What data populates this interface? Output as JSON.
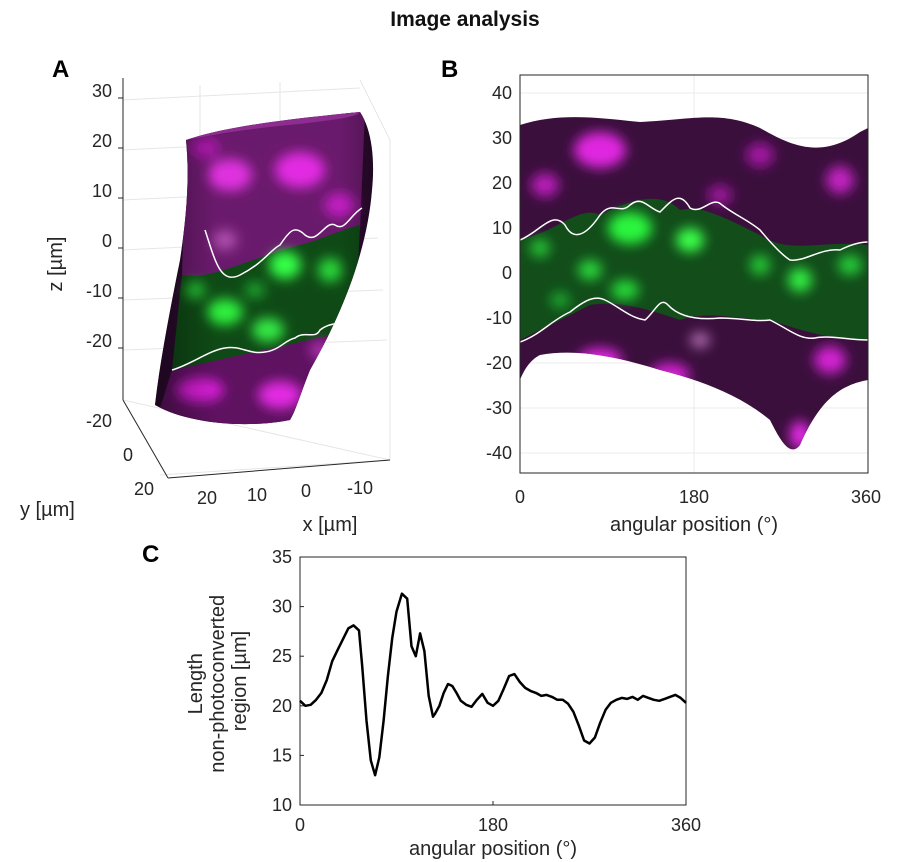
{
  "title": "Image analysis",
  "panels": {
    "a": {
      "label": "A",
      "zlabel": "z [µm]",
      "ylabel": "y [µm]",
      "xlabel": "x [µm]",
      "zticks": [
        "30",
        "20",
        "10",
        "0",
        "-10",
        "-20"
      ],
      "yticks": [
        "-20",
        "0",
        "20"
      ],
      "xticks": [
        "20",
        "10",
        "0",
        "-10"
      ]
    },
    "b": {
      "label": "B",
      "yticks": [
        "40",
        "30",
        "20",
        "10",
        "0",
        "-10",
        "-20",
        "-30",
        "-40"
      ],
      "xticks": [
        "0",
        "180",
        "360"
      ],
      "xlabel": "angular position (°)"
    },
    "c": {
      "label": "C"
    }
  },
  "colors": {
    "unconverted": "#22dd33",
    "photoconverted": "#d21fd2",
    "trace": "#000000",
    "boundary": "#ffffff"
  },
  "chart_data": {
    "type": "line",
    "title": "",
    "xlabel": "angular position (°)",
    "ylabel_lines": [
      "Length",
      "non-photoconverted",
      "region [µm]"
    ],
    "xlim": [
      0,
      360
    ],
    "ylim": [
      10,
      35
    ],
    "xticks": [
      0,
      180,
      360
    ],
    "yticks": [
      10,
      15,
      20,
      25,
      30,
      35
    ],
    "series": [
      {
        "name": "length",
        "x": [
          0,
          5,
          10,
          15,
          20,
          25,
          30,
          35,
          40,
          45,
          50,
          55,
          58,
          62,
          66,
          70,
          74,
          78,
          82,
          86,
          90,
          95,
          100,
          104,
          108,
          112,
          116,
          120,
          124,
          126,
          130,
          134,
          138,
          142,
          146,
          150,
          155,
          160,
          165,
          170,
          175,
          180,
          185,
          190,
          195,
          200,
          205,
          210,
          215,
          220,
          225,
          230,
          235,
          240,
          245,
          250,
          255,
          260,
          265,
          270,
          275,
          280,
          285,
          290,
          295,
          300,
          305,
          310,
          315,
          320,
          325,
          330,
          335,
          340,
          345,
          350,
          355,
          360
        ],
        "y": [
          20.5,
          20.0,
          20.1,
          20.6,
          21.3,
          22.6,
          24.5,
          25.6,
          26.7,
          27.8,
          28.1,
          27.6,
          24.0,
          18.5,
          14.5,
          13.0,
          14.8,
          18.5,
          23.0,
          26.8,
          29.5,
          31.3,
          30.8,
          26.0,
          25.0,
          27.3,
          25.5,
          21.0,
          18.9,
          19.2,
          20.0,
          21.3,
          22.2,
          22.0,
          21.3,
          20.5,
          20.1,
          19.9,
          20.6,
          21.2,
          20.3,
          20.0,
          20.5,
          21.7,
          23.0,
          23.2,
          22.4,
          21.8,
          21.5,
          21.3,
          21.0,
          21.1,
          20.9,
          20.6,
          20.6,
          20.2,
          19.4,
          18.0,
          16.5,
          16.2,
          16.8,
          18.3,
          19.6,
          20.3,
          20.6,
          20.8,
          20.7,
          20.9,
          20.6,
          21.0,
          20.8,
          20.6,
          20.5,
          20.7,
          20.9,
          21.1,
          20.8,
          20.3
        ]
      }
    ]
  }
}
